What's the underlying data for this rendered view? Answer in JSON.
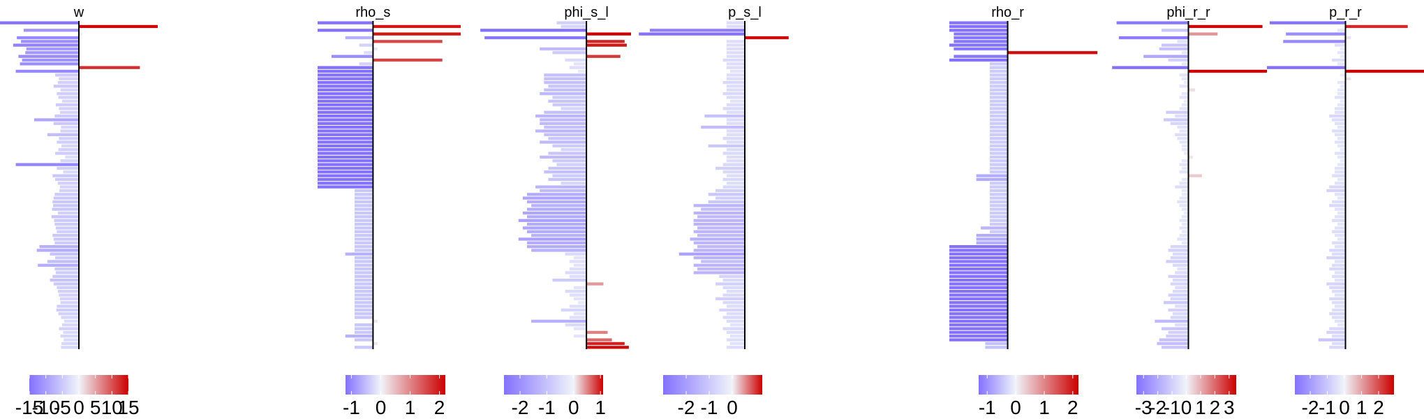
{
  "chart_data": [
    {
      "type": "bar",
      "orientation": "horizontal",
      "title": "w",
      "xlim": [
        -15,
        15
      ],
      "color_scale": {
        "ticks": [
          -15,
          -10,
          -5,
          0,
          5,
          10,
          15
        ],
        "tick_labels": [
          "-15",
          "-10",
          "-5",
          "0",
          "5",
          "10",
          "15"
        ],
        "neg": "#8472FF",
        "mid": "#F0F4FA",
        "pos": "#CC0000"
      },
      "values": [
        -15.2,
        15.0,
        -10.5,
        0.6,
        -11.8,
        -11.0,
        -12.5,
        -10.0,
        -10.2,
        -11.5,
        -10.8,
        -11.2,
        11.6,
        -12.0,
        -4.5,
        -3.8,
        -4.0,
        -4.8,
        -3.5,
        -4.2,
        -3.9,
        -3.2,
        -4.4,
        -3.8,
        -3.6,
        -4.6,
        -8.5,
        -4.8,
        -3.4,
        -3.5,
        -6.0,
        -3.8,
        -4.2,
        -3.3,
        -3.9,
        -4.5,
        -2.6,
        -3.5,
        -12.0,
        -4.2,
        -3.0,
        -5.0,
        -4.5,
        -4.0,
        -3.6,
        -3.7,
        -4.6,
        -4.8,
        -5.0,
        -4.9,
        -5.1,
        -4.0,
        -5.2,
        -4.7,
        -4.6,
        -4.4,
        -4.2,
        -5.0,
        -4.8,
        -4.6,
        -7.5,
        -8.0,
        -5.5,
        -4.5,
        -6.0,
        -7.8,
        -4.6,
        -4.4,
        -5.0,
        -5.5,
        -4.8,
        -4.2,
        -4.0,
        -3.8,
        -3.6,
        -3.5,
        -4.2,
        -4.3,
        -3.9,
        -3.4,
        -2.8,
        -3.2,
        -3.8,
        -3.0,
        -3.5,
        -2.9,
        -3.3,
        -3.4
      ]
    },
    {
      "type": "bar",
      "orientation": "horizontal",
      "title": "rho_s",
      "xlim": [
        -1.2,
        2.2
      ],
      "color_scale": {
        "ticks": [
          -1,
          0,
          1,
          2
        ],
        "tick_labels": [
          "-1",
          "0",
          "1",
          "2"
        ],
        "neg": "#8472FF",
        "mid": "#F0F4FA",
        "pos": "#CC0000"
      },
      "values": [
        -1.2,
        1.9,
        -1.2,
        1.9,
        -0.6,
        1.5,
        -0.3,
        0.1,
        -0.2,
        -0.9,
        1.5,
        -0.3,
        -1.2,
        -1.2,
        -1.2,
        -1.2,
        -1.2,
        -1.2,
        -1.2,
        -1.2,
        -1.2,
        -1.2,
        -1.2,
        -1.2,
        -1.2,
        -1.2,
        -1.2,
        -1.2,
        -1.2,
        -1.2,
        -1.2,
        -1.2,
        -1.2,
        -1.2,
        -1.2,
        -1.2,
        -1.2,
        -1.2,
        -1.2,
        -1.2,
        -1.2,
        -1.2,
        -1.2,
        -1.2,
        -1.2,
        -0.4,
        -0.4,
        -0.4,
        -0.4,
        -0.4,
        -0.4,
        -0.4,
        -0.4,
        -0.4,
        -0.4,
        -0.4,
        -0.4,
        -0.4,
        -0.4,
        -0.4,
        -0.4,
        -0.4,
        -0.6,
        -0.4,
        -0.4,
        -0.4,
        -0.4,
        -0.4,
        -0.4,
        -0.4,
        -0.4,
        -0.4,
        -0.4,
        -0.4,
        -0.4,
        -0.4,
        -0.4,
        -0.4,
        -0.4,
        -0.4,
        0.1,
        -0.4,
        -0.4,
        -0.4,
        -0.6,
        -0.4,
        0.1,
        -0.4
      ]
    },
    {
      "type": "bar",
      "orientation": "horizontal",
      "title": "phi_s_l",
      "xlim": [
        -2.6,
        1.1
      ],
      "color_scale": {
        "ticks": [
          -2,
          -1,
          0,
          1
        ],
        "tick_labels": [
          "-2",
          "-1",
          "0",
          "1"
        ],
        "neg": "#8472FF",
        "mid": "#F0F4FA",
        "pos": "#CC0000"
      },
      "values": [
        -0.7,
        -0.6,
        -2.5,
        1.05,
        -2.4,
        0.9,
        0.95,
        -1.1,
        -0.8,
        0.8,
        -0.5,
        -0.3,
        -0.4,
        -0.2,
        -1.0,
        -1.0,
        -1.0,
        -0.9,
        -1.0,
        -1.1,
        -0.8,
        -0.9,
        -0.8,
        -0.6,
        -1.0,
        -1.2,
        -1.1,
        -1.1,
        -1.0,
        -1.2,
        -1.0,
        -0.9,
        -1.1,
        -0.8,
        -0.6,
        -0.9,
        -1.1,
        -0.8,
        -0.7,
        -0.9,
        -1.0,
        -0.8,
        -0.9,
        -0.6,
        -1.2,
        -1.1,
        -1.4,
        -1.5,
        -1.4,
        -1.3,
        -1.4,
        -1.5,
        -1.4,
        -1.6,
        -1.4,
        -1.5,
        -1.4,
        -1.3,
        -1.6,
        -1.4,
        -1.4,
        -1.3,
        -0.5,
        -0.3,
        -0.4,
        -0.3,
        -0.4,
        -0.5,
        -0.4,
        -0.8,
        0.4,
        -0.3,
        -0.5,
        -0.4,
        -0.3,
        -0.2,
        -0.4,
        -0.6,
        -0.3,
        -0.4,
        -1.3,
        -0.5,
        -0.3,
        0.5,
        -0.3,
        0.6,
        0.9,
        1.0
      ]
    },
    {
      "type": "bar",
      "orientation": "horizontal",
      "title": "p_s_l",
      "xlim": [
        -3.0,
        1.3
      ],
      "color_scale": {
        "ticks": [
          -2,
          -1,
          0
        ],
        "tick_labels": [
          "-2",
          "-1",
          "0"
        ],
        "neg": "#8472FF",
        "mid": "#F0F4FA",
        "pos": "#CC0000"
      },
      "values": [
        -0.5,
        -0.5,
        -2.6,
        -2.9,
        1.2,
        -0.5,
        -0.5,
        -0.5,
        -0.5,
        -0.5,
        -0.6,
        -0.5,
        -0.5,
        -0.4,
        -0.5,
        -0.5,
        -0.6,
        -0.5,
        -0.5,
        -0.6,
        -0.5,
        -0.4,
        -0.5,
        -0.6,
        -0.5,
        -1.1,
        -0.5,
        -0.5,
        -1.2,
        -0.5,
        -0.5,
        -0.6,
        -0.5,
        -1.0,
        -0.5,
        -0.6,
        -0.5,
        -0.5,
        -0.6,
        -0.8,
        -0.6,
        -0.5,
        -0.6,
        -0.5,
        -0.6,
        -0.8,
        -1.0,
        -0.8,
        -1.0,
        -1.4,
        -1.2,
        -1.4,
        -1.3,
        -1.4,
        -1.4,
        -1.3,
        -1.4,
        -1.3,
        -1.5,
        -1.4,
        -1.3,
        -1.4,
        -1.8,
        -1.4,
        -1.2,
        -1.4,
        -1.3,
        -1.4,
        -0.7,
        -0.6,
        -0.8,
        -0.6,
        -0.5,
        -0.6,
        -0.8,
        -0.6,
        -0.5,
        -0.7,
        -0.5,
        -0.6,
        -0.5,
        -0.4,
        -0.6,
        -0.5,
        -0.4,
        -0.5,
        -0.4,
        -0.5
      ]
    },
    {
      "type": "bar",
      "orientation": "horizontal",
      "title": "rho_r",
      "xlim": [
        -1.3,
        2.2
      ],
      "color_scale": {
        "ticks": [
          -1,
          0,
          1,
          2
        ],
        "tick_labels": [
          "-1",
          "0",
          "1",
          "2"
        ],
        "neg": "#8472FF",
        "mid": "#F0F4FA",
        "pos": "#CC0000"
      },
      "values": [
        -1.3,
        -1.3,
        -1.3,
        -1.2,
        -1.2,
        -1.2,
        -1.3,
        -1.2,
        2.0,
        -1.2,
        -1.3,
        -0.4,
        -0.4,
        -0.4,
        -0.4,
        -0.4,
        -0.4,
        -0.4,
        -0.4,
        -0.4,
        -0.4,
        -0.4,
        -0.4,
        -0.4,
        -0.4,
        -0.4,
        -0.4,
        -0.4,
        -0.4,
        -0.4,
        -0.4,
        -0.4,
        -0.4,
        -0.4,
        -0.4,
        -0.4,
        -0.4,
        -0.4,
        -0.4,
        -0.4,
        -0.4,
        -0.7,
        -0.7,
        -0.4,
        -0.4,
        -0.4,
        -0.4,
        -0.4,
        -0.4,
        -0.4,
        -0.4,
        -0.4,
        -0.4,
        -0.4,
        -0.4,
        -0.6,
        -0.4,
        -0.7,
        -0.7,
        -0.7,
        -1.3,
        -1.3,
        -1.3,
        -1.3,
        -1.3,
        -1.3,
        -1.3,
        -1.3,
        -1.3,
        -1.3,
        -1.3,
        -1.3,
        -1.3,
        -1.3,
        -1.3,
        -1.3,
        -1.3,
        -1.3,
        -1.3,
        -1.3,
        -1.3,
        -1.3,
        -1.3,
        -1.3,
        -1.3,
        -1.3,
        -0.5,
        -0.5
      ]
    },
    {
      "type": "bar",
      "orientation": "horizontal",
      "title": "phi_r_r",
      "xlim": [
        -3.5,
        3.5
      ],
      "color_scale": {
        "ticks": [
          -3,
          -2,
          -1,
          0,
          1,
          2,
          3
        ],
        "tick_labels": [
          "-3",
          "-2",
          "-1",
          "0",
          "1",
          "2",
          "3"
        ],
        "neg": "#8472FF",
        "mid": "#F0F4FA",
        "pos": "#CC0000"
      },
      "values": [
        -3.2,
        3.3,
        -1.2,
        1.3,
        -3.1,
        -0.5,
        -1.2,
        -1.3,
        -0.3,
        -2.0,
        -0.9,
        -0.3,
        -3.4,
        3.5,
        -0.4,
        -0.3,
        -0.2,
        -0.4,
        0.3,
        -0.3,
        -0.4,
        -0.2,
        -0.3,
        -0.4,
        -1.0,
        -0.6,
        -1.1,
        -0.8,
        -0.5,
        -0.4,
        -0.6,
        -0.5,
        -0.4,
        -0.3,
        -0.3,
        -0.2,
        0.2,
        -0.3,
        -0.4,
        -0.3,
        -0.4,
        0.6,
        -0.3,
        -0.4,
        -0.6,
        -0.3,
        -0.3,
        -0.4,
        -0.5,
        -0.4,
        -0.3,
        -0.2,
        -0.3,
        -0.4,
        -0.3,
        -0.4,
        -0.3,
        -0.4,
        -0.5,
        -0.3,
        -0.8,
        -0.9,
        -0.7,
        -0.8,
        -1.0,
        -0.7,
        -0.5,
        -0.6,
        -0.9,
        -0.7,
        -0.8,
        -0.6,
        -0.7,
        -0.9,
        -0.8,
        -1.1,
        -0.6,
        -0.9,
        -0.7,
        -0.8,
        -1.5,
        -0.6,
        -1.2,
        -0.9,
        -1.0,
        -1.3,
        -1.4,
        -1.2
      ]
    },
    {
      "type": "bar",
      "orientation": "horizontal",
      "title": "p_r_r",
      "xlim": [
        -2.9,
        2.9
      ],
      "color_scale": {
        "ticks": [
          -2,
          -1,
          0,
          1,
          2
        ],
        "tick_labels": [
          "-2",
          "-1",
          "0",
          "1",
          "2"
        ],
        "neg": "#8472FF",
        "mid": "#F0F4FA",
        "pos": "#CC0000"
      },
      "values": [
        -2.8,
        2.3,
        -0.3,
        -2.2,
        0.2,
        -2.3,
        -0.4,
        -0.2,
        -0.3,
        -0.2,
        -0.5,
        -0.3,
        -2.9,
        2.9,
        -0.2,
        0.2,
        -0.3,
        -0.2,
        -0.3,
        -0.3,
        -0.4,
        -0.2,
        -0.3,
        -0.4,
        -0.4,
        -0.6,
        -0.5,
        -0.4,
        -0.3,
        -0.5,
        -0.4,
        -0.3,
        -0.4,
        -0.3,
        -0.2,
        -0.4,
        -0.3,
        -0.2,
        -0.3,
        -0.4,
        -0.4,
        -0.5,
        -0.3,
        -0.4,
        -0.6,
        -0.7,
        -0.4,
        -0.3,
        -0.5,
        -0.6,
        -0.4,
        -0.3,
        -0.4,
        -0.5,
        -0.3,
        -0.4,
        -0.5,
        -0.4,
        -0.3,
        -0.5,
        -0.4,
        -0.6,
        -0.5,
        -0.7,
        -0.4,
        -0.5,
        -0.6,
        -0.4,
        -0.5,
        -0.4,
        -0.7,
        -0.6,
        -0.5,
        -0.4,
        -0.6,
        -0.5,
        -0.4,
        -0.5,
        -0.6,
        -0.5,
        -0.4,
        -0.3,
        -0.6,
        -0.7,
        -0.5,
        -1.0,
        -0.5,
        -0.6
      ]
    }
  ]
}
